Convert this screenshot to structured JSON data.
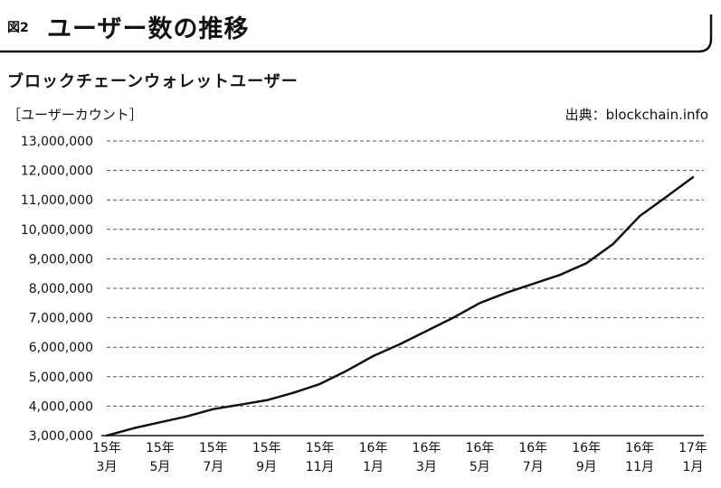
{
  "figure": {
    "number": "図2",
    "title": "ユーザー数の推移",
    "chart_title": "ブロックチェーンウォレットユーザー",
    "unit": "［ユーザーカウント］",
    "source": "出典：blockchain.info"
  },
  "chart_data": {
    "type": "line",
    "title": "ブロックチェーンウォレットユーザー",
    "ylabel": "ユーザーカウント",
    "xlabel": "",
    "ylim": [
      3000000,
      13000000
    ],
    "yticks": [
      3000000,
      4000000,
      5000000,
      6000000,
      7000000,
      8000000,
      9000000,
      10000000,
      11000000,
      12000000,
      13000000
    ],
    "ytick_labels": [
      "3,000,000",
      "4,000,000",
      "5,000,000",
      "6,000,000",
      "7,000,000",
      "8,000,000",
      "9,000,000",
      "10,000,000",
      "11,000,000",
      "12,000,000",
      "13,000,000"
    ],
    "xlim": [
      "2015-03",
      "2017-01"
    ],
    "xticks": [
      "2015-03",
      "2015-05",
      "2015-07",
      "2015-09",
      "2015-11",
      "2016-01",
      "2016-03",
      "2016-05",
      "2016-07",
      "2016-09",
      "2016-11",
      "2017-01"
    ],
    "xtick_labels": [
      [
        "15年",
        "3月"
      ],
      [
        "15年",
        "5月"
      ],
      [
        "15年",
        "7月"
      ],
      [
        "15年",
        "9月"
      ],
      [
        "15年",
        "11月"
      ],
      [
        "16年",
        "1月"
      ],
      [
        "16年",
        "3月"
      ],
      [
        "16年",
        "5月"
      ],
      [
        "16年",
        "7月"
      ],
      [
        "16年",
        "9月"
      ],
      [
        "16年",
        "11月"
      ],
      [
        "17年",
        "1月"
      ]
    ],
    "grid": true,
    "legend": "none",
    "series": [
      {
        "x": [
          "2015-03",
          "2015-04",
          "2015-05",
          "2015-06",
          "2015-07",
          "2015-08",
          "2015-09",
          "2015-10",
          "2015-11",
          "2015-12",
          "2016-01",
          "2016-02",
          "2016-03",
          "2016-04",
          "2016-05",
          "2016-06",
          "2016-07",
          "2016-08",
          "2016-09",
          "2016-10",
          "2016-11",
          "2016-12",
          "2017-01"
        ],
        "values": [
          3000000,
          3250000,
          3450000,
          3650000,
          3900000,
          4050000,
          4200000,
          4450000,
          4750000,
          5200000,
          5700000,
          6100000,
          6550000,
          7000000,
          7500000,
          7850000,
          8150000,
          8450000,
          8850000,
          9500000,
          10450000,
          11100000,
          11770000
        ]
      }
    ],
    "colors": {
      "line": "#111111",
      "grid": "#555555",
      "axis": "#111111"
    }
  }
}
